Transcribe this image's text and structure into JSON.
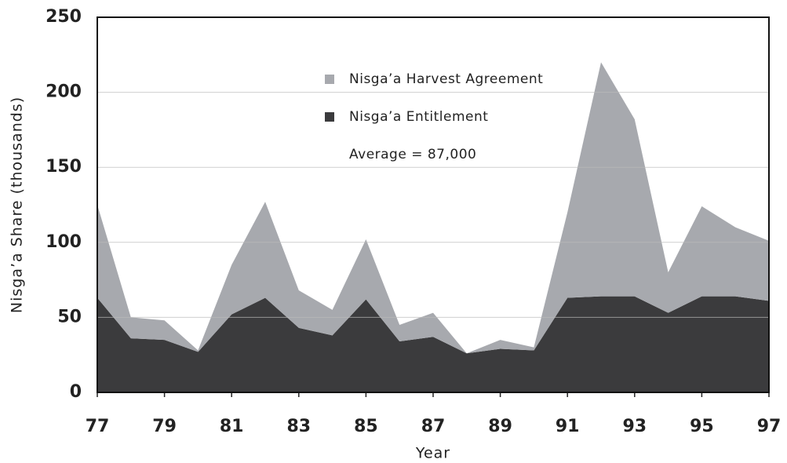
{
  "chart_data": {
    "type": "stacked_area",
    "xlabel": "Year",
    "ylabel": "Nisga’a Share (thousands)",
    "annotation": "Average = 87,000",
    "x": [
      77,
      78,
      79,
      80,
      81,
      82,
      83,
      84,
      85,
      86,
      87,
      88,
      89,
      90,
      91,
      92,
      93,
      94,
      95,
      96,
      97
    ],
    "series": [
      {
        "name": "Nisga’a Entitlement",
        "color": "#3b3b3d",
        "values": [
          63,
          36,
          35,
          27,
          52,
          63,
          43,
          38,
          62,
          34,
          37,
          26,
          29,
          28,
          63,
          64,
          64,
          53,
          64,
          64,
          61
        ]
      },
      {
        "name": "Nisga’a Harvest Agreement",
        "color": "#a7a9ae",
        "values": [
          62,
          14,
          13,
          1,
          33,
          64,
          25,
          17,
          40,
          11,
          16,
          0,
          6,
          2,
          57,
          156,
          118,
          27,
          60,
          46,
          40
        ]
      }
    ],
    "xlim": [
      77,
      97
    ],
    "xticks": [
      77,
      79,
      81,
      83,
      85,
      87,
      89,
      91,
      93,
      95,
      97
    ],
    "ylim": [
      0,
      250
    ],
    "yticks": [
      0,
      50,
      100,
      150,
      200,
      250
    ],
    "grid": true
  }
}
